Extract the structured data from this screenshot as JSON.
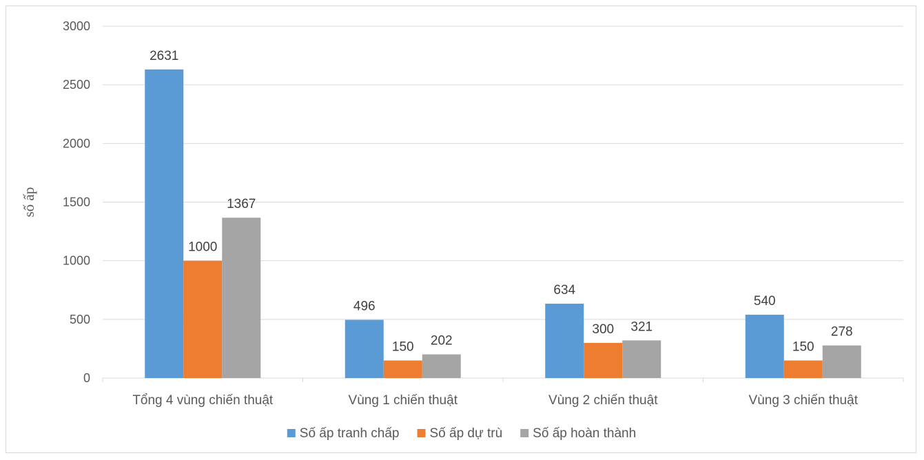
{
  "chart_data": {
    "type": "bar",
    "title": "",
    "xlabel": "",
    "ylabel": "số ấp",
    "ylim": [
      0,
      3000
    ],
    "yticks": [
      0,
      500,
      1000,
      1500,
      2000,
      2500,
      3000
    ],
    "grid": true,
    "legend_position": "bottom",
    "categories": [
      "Tổng 4 vùng chiến thuật",
      "Vùng 1 chiến thuật",
      "Vùng 2 chiến thuật",
      "Vùng 3 chiến thuật"
    ],
    "series": [
      {
        "name": "Số ấp tranh chấp",
        "color": "#5b9bd5",
        "values": [
          2631,
          496,
          634,
          540
        ]
      },
      {
        "name": "Số ấp dự trù",
        "color": "#ed7d31",
        "values": [
          1000,
          150,
          300,
          150
        ]
      },
      {
        "name": "Số ấp hoàn thành",
        "color": "#a5a5a5",
        "values": [
          1367,
          202,
          321,
          278
        ]
      }
    ]
  }
}
